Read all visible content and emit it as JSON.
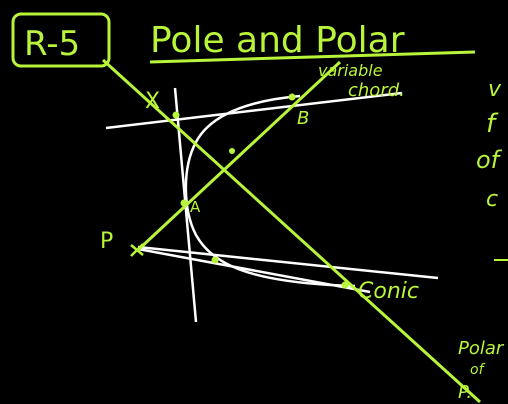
{
  "colors": {
    "background": "#000000",
    "accent": "#b8f53a",
    "curve": "#ffffff"
  },
  "header": {
    "tag": "R-5",
    "title": "Pole and Polar"
  },
  "labels": {
    "variable_chord_1": "variable",
    "variable_chord_2": "chord.",
    "point_x": "X",
    "point_b": "B",
    "point_a": "A",
    "point_p": "P",
    "conic": "Conic",
    "polar_1": "Polar",
    "polar_2": "of",
    "polar_3": "P.",
    "margin_1": "v",
    "margin_2": "f",
    "margin_3": "of",
    "margin_4": "c"
  }
}
